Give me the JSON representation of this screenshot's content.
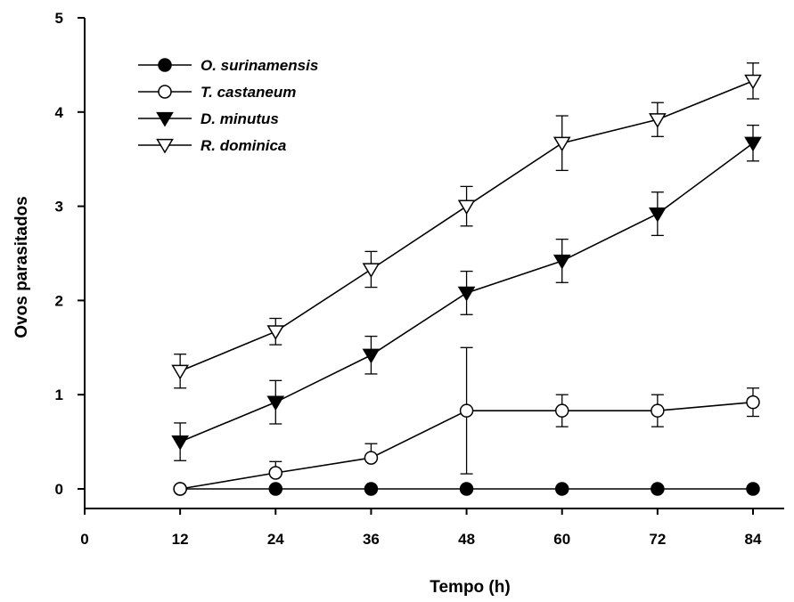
{
  "chart_data": {
    "type": "line",
    "xlabel": "Tempo (h)",
    "ylabel": "Ovos parasitados",
    "xlim": [
      0,
      84
    ],
    "ylim": [
      0,
      5
    ],
    "xticks": [
      0,
      12,
      24,
      36,
      48,
      60,
      72,
      84
    ],
    "yticks": [
      0,
      1,
      2,
      3,
      4,
      5
    ],
    "x": [
      12,
      24,
      36,
      48,
      60,
      72,
      84
    ],
    "grid": false,
    "legend_position": "top-left",
    "series": [
      {
        "name": "O. surinamensis",
        "marker": "circle-filled",
        "values": [
          0,
          0,
          0,
          0,
          0,
          0,
          0
        ],
        "errors": [
          0,
          0,
          0,
          0,
          0,
          0,
          0
        ]
      },
      {
        "name": "T. castaneum",
        "marker": "circle-open",
        "values": [
          0,
          0.17,
          0.33,
          0.83,
          0.83,
          0.83,
          0.92
        ],
        "errors": [
          0,
          0.12,
          0.15,
          0.67,
          0.17,
          0.17,
          0.15
        ]
      },
      {
        "name": "D. minutus",
        "marker": "triangle-down-filled",
        "values": [
          0.5,
          0.92,
          1.42,
          2.08,
          2.42,
          2.92,
          3.67
        ],
        "errors": [
          0.2,
          0.23,
          0.2,
          0.23,
          0.23,
          0.23,
          0.19
        ]
      },
      {
        "name": "R. dominica",
        "marker": "triangle-down-open",
        "values": [
          1.25,
          1.67,
          2.33,
          3.0,
          3.67,
          3.92,
          4.33
        ],
        "errors": [
          0.18,
          0.14,
          0.19,
          0.21,
          0.29,
          0.18,
          0.19
        ]
      }
    ]
  }
}
